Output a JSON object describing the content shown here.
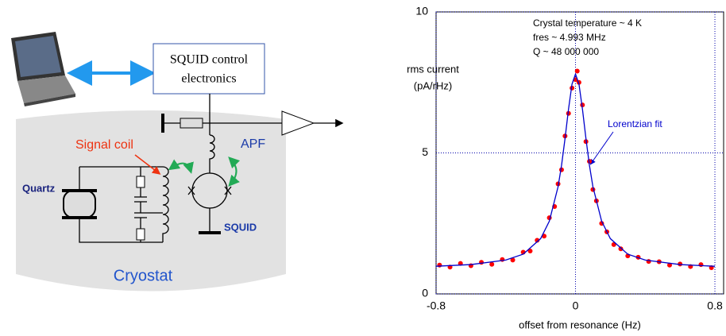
{
  "diagram": {
    "labels": {
      "control": [
        "SQUID control",
        "electronics"
      ],
      "signal_coil": "Signal coil",
      "apf": "APF",
      "quartz": "Quartz",
      "squid": "SQUID",
      "cryostat": "Cryostat"
    }
  },
  "chart_data": {
    "type": "scatter",
    "y_label": [
      "rms current",
      "(pA/rHz)"
    ],
    "x_label": "offset from resonance (Hz)",
    "annotations": [
      "Crystal temperature ~ 4 K",
      "fres ~  4.993 MHz",
      "Q ~ 48 000 000",
      "Lorentzian fit"
    ],
    "xlim": [
      -0.8,
      0.85
    ],
    "xticks": [
      -0.8,
      0,
      0.8
    ],
    "ylim": [
      0,
      10
    ],
    "yticks": [
      0,
      5,
      10
    ],
    "grid": true,
    "series": [
      {
        "mode": "markers",
        "color": "#ff0000",
        "x": [
          -0.78,
          -0.72,
          -0.66,
          -0.6,
          -0.54,
          -0.48,
          -0.42,
          -0.36,
          -0.3,
          -0.26,
          -0.22,
          -0.18,
          -0.15,
          -0.12,
          -0.1,
          -0.08,
          -0.06,
          -0.04,
          -0.02,
          0,
          0.01,
          0.02,
          0.04,
          0.06,
          0.08,
          0.1,
          0.12,
          0.15,
          0.18,
          0.22,
          0.26,
          0.3,
          0.36,
          0.42,
          0.48,
          0.54,
          0.6,
          0.66,
          0.72,
          0.78
        ],
        "values": [
          1.02,
          0.95,
          1.08,
          1.0,
          1.12,
          1.05,
          1.22,
          1.2,
          1.48,
          1.52,
          1.9,
          2.05,
          2.7,
          3.1,
          3.9,
          4.4,
          5.6,
          6.4,
          7.3,
          7.6,
          7.9,
          7.5,
          6.7,
          5.4,
          4.7,
          3.7,
          3.3,
          2.5,
          2.2,
          1.75,
          1.6,
          1.35,
          1.3,
          1.15,
          1.14,
          1.02,
          1.06,
          0.97,
          1.04,
          0.93
        ]
      },
      {
        "mode": "line",
        "color": "#0000cc",
        "x": [
          -0.8,
          -0.6,
          -0.4,
          -0.3,
          -0.2,
          -0.15,
          -0.1,
          -0.08,
          -0.06,
          -0.04,
          -0.02,
          0,
          0.02,
          0.04,
          0.06,
          0.08,
          0.1,
          0.15,
          0.2,
          0.3,
          0.4,
          0.6,
          0.8
        ],
        "values": [
          0.98,
          1.04,
          1.2,
          1.41,
          1.96,
          2.58,
          3.8,
          4.56,
          5.51,
          6.55,
          7.44,
          7.8,
          7.44,
          6.55,
          5.51,
          4.56,
          3.8,
          2.58,
          1.96,
          1.41,
          1.2,
          1.04,
          0.98
        ]
      }
    ]
  }
}
